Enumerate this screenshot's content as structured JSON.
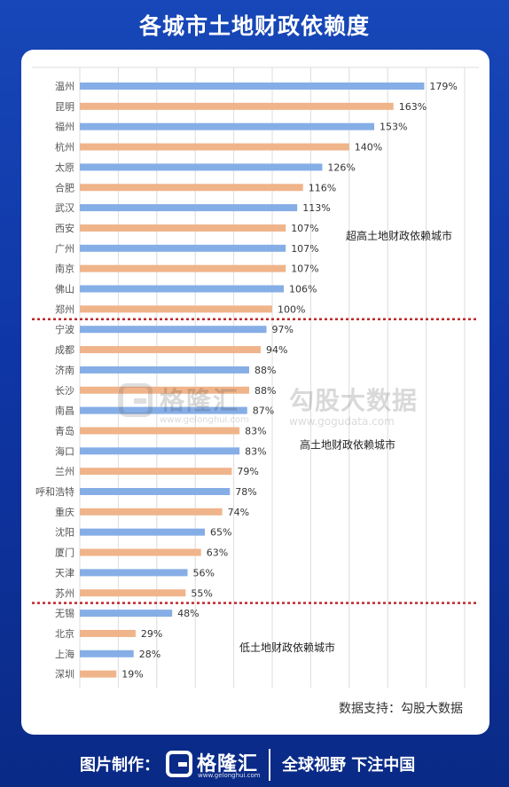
{
  "page_title": "各城市土地财政依赖度",
  "source_note": "数据支持：勾股大数据",
  "watermark": {
    "brand1": "格隆汇",
    "url1": "www.gelonghui.com",
    "brand2": "勾股大数据",
    "url2": "www.gogudata.com"
  },
  "footer": {
    "label": "图片制作：",
    "brand": "格隆汇",
    "brand_url": "www.gelonghui.com",
    "slogan": "全球视野 下注中国"
  },
  "colors": {
    "blue_bar": "#86aee6",
    "orange_bar": "#f0b48a",
    "divider": "#c0282b",
    "grid": "#dcdcdc",
    "text": "#333333"
  },
  "chart_data": {
    "type": "bar",
    "orientation": "horizontal",
    "unit": "%",
    "xlim": [
      0,
      200
    ],
    "grid": true,
    "categories": [
      "温州",
      "昆明",
      "福州",
      "杭州",
      "太原",
      "合肥",
      "武汉",
      "西安",
      "广州",
      "南京",
      "佛山",
      "郑州",
      "宁波",
      "成都",
      "济南",
      "长沙",
      "南昌",
      "青岛",
      "海口",
      "兰州",
      "呼和浩特",
      "重庆",
      "沈阳",
      "厦门",
      "天津",
      "苏州",
      "无锡",
      "北京",
      "上海",
      "深圳"
    ],
    "values": [
      179,
      163,
      153,
      140,
      126,
      116,
      113,
      107,
      107,
      107,
      106,
      100,
      97,
      94,
      88,
      88,
      87,
      83,
      83,
      79,
      78,
      74,
      65,
      63,
      56,
      55,
      48,
      29,
      28,
      19
    ],
    "value_labels": [
      "179%",
      "163%",
      "153%",
      "140%",
      "126%",
      "116%",
      "113%",
      "107%",
      "107%",
      "107%",
      "106%",
      "100%",
      "97%",
      "94%",
      "88%",
      "88%",
      "87%",
      "83%",
      "83%",
      "79%",
      "78%",
      "74%",
      "65%",
      "63%",
      "56%",
      "55%",
      "48%",
      "29%",
      "28%",
      "19%"
    ],
    "bar_colors": [
      "blue",
      "orange",
      "blue",
      "orange",
      "blue",
      "orange",
      "blue",
      "orange",
      "blue",
      "orange",
      "blue",
      "orange",
      "blue",
      "orange",
      "blue",
      "orange",
      "blue",
      "orange",
      "blue",
      "orange",
      "blue",
      "orange",
      "blue",
      "orange",
      "blue",
      "orange",
      "blue",
      "orange",
      "blue",
      "orange"
    ],
    "groups": [
      {
        "label": "超高土地财政依赖城市",
        "start_index": 0,
        "end_index": 11
      },
      {
        "label": "高土地财政依赖城市",
        "start_index": 12,
        "end_index": 25
      },
      {
        "label": "低土地财政依赖城市",
        "start_index": 26,
        "end_index": 29
      }
    ]
  }
}
